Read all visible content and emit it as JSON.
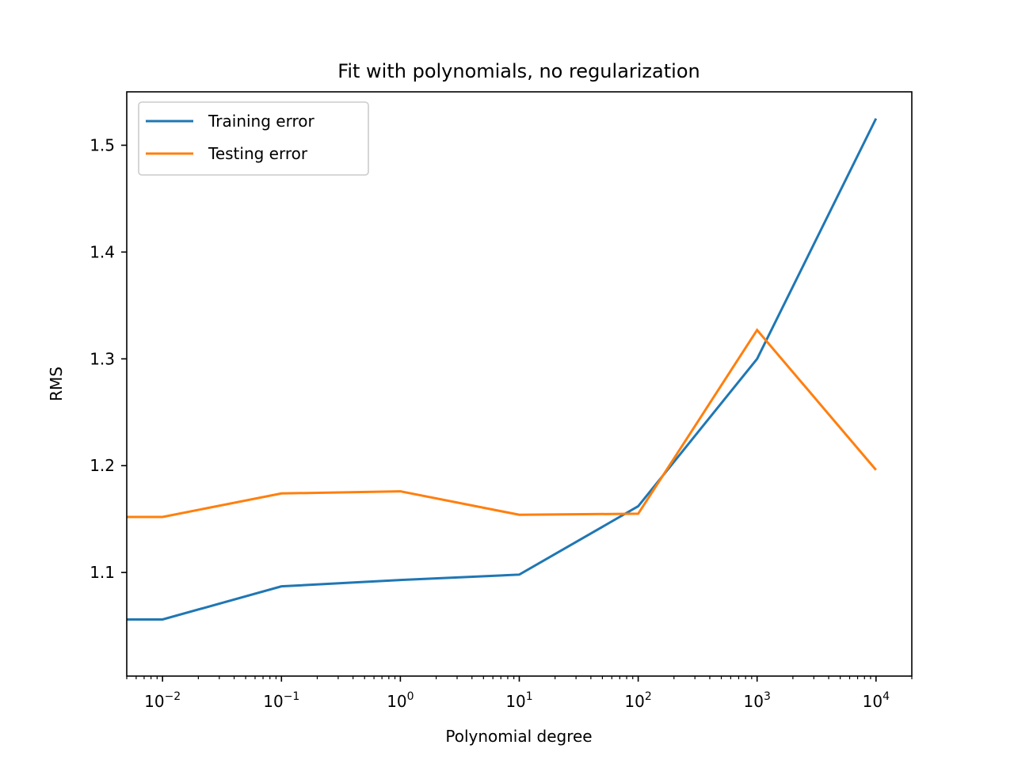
{
  "chart_data": {
    "type": "line",
    "title": "Fit with polynomials, no regularization",
    "xlabel": "Polynomial degree",
    "ylabel": "RMS",
    "xscale": "log",
    "x": [
      0.001,
      0.01,
      0.1,
      1,
      10,
      100,
      1000,
      10000
    ],
    "xlim": [
      0.005,
      20000
    ],
    "ylim": [
      1.003,
      1.55
    ],
    "grid": false,
    "legend_position": "top-left",
    "x_ticks": [
      {
        "value": 0.01,
        "base": "10",
        "exp": "−2"
      },
      {
        "value": 0.1,
        "base": "10",
        "exp": "−1"
      },
      {
        "value": 1,
        "base": "10",
        "exp": "0"
      },
      {
        "value": 10,
        "base": "10",
        "exp": "1"
      },
      {
        "value": 100,
        "base": "10",
        "exp": "2"
      },
      {
        "value": 1000,
        "base": "10",
        "exp": "3"
      },
      {
        "value": 10000,
        "base": "10",
        "exp": "4"
      }
    ],
    "y_ticks": [
      1.1,
      1.2,
      1.3,
      1.4,
      1.5
    ],
    "y_tick_labels": [
      "1.1",
      "1.2",
      "1.3",
      "1.4",
      "1.5"
    ],
    "series": [
      {
        "name": "Training error",
        "color": "#1f77b4",
        "values": [
          1.056,
          1.056,
          1.087,
          1.093,
          1.098,
          1.162,
          1.3,
          1.525
        ]
      },
      {
        "name": "Testing error",
        "color": "#ff7f0e",
        "values": [
          1.152,
          1.152,
          1.174,
          1.176,
          1.154,
          1.155,
          1.327,
          1.196
        ]
      }
    ]
  }
}
